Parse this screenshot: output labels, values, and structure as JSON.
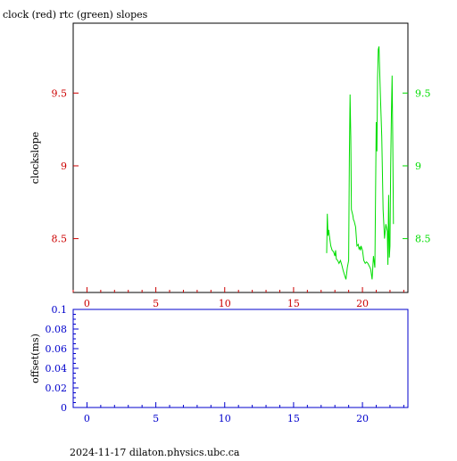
{
  "header": {
    "title": "clock (red) rtc (green) slopes"
  },
  "footer": {
    "text": "2024-11-17  dilaton.physics.ubc.ca"
  },
  "colors": {
    "red": "#cc0000",
    "green": "#00dd00",
    "blue": "#0000cc",
    "frame": "#000000"
  },
  "chart_data": [
    {
      "type": "line",
      "title": "clock (red) rtc (green) slopes",
      "xlabel": "",
      "ylabel": "clockslope",
      "xlim": [
        -1,
        23.3
      ],
      "ylim": [
        8.13,
        9.98
      ],
      "x_ticks": [
        0,
        5,
        10,
        15,
        20
      ],
      "y_ticks_left": [
        8.5,
        9,
        9.5
      ],
      "y_ticks_right": [
        8.5,
        9,
        9.5
      ],
      "y_tick_labels_left": [
        "8.5",
        "9",
        "9.5"
      ],
      "y_tick_labels_right": [
        "8.5",
        "9",
        "9.5"
      ],
      "grid": false,
      "legend": "none",
      "series": [
        {
          "color": "green",
          "x": [
            17.4,
            17.45,
            17.5,
            17.55,
            17.6,
            17.7,
            17.8,
            17.9,
            18.0,
            18.05,
            18.1,
            18.2,
            18.3,
            18.4,
            18.5,
            18.6,
            18.7,
            18.8,
            18.9,
            19.0,
            19.05,
            19.1,
            19.15,
            19.2,
            19.25,
            19.3,
            19.35,
            19.4,
            19.5,
            19.6,
            19.7,
            19.75,
            19.8,
            19.85,
            19.9,
            20.0,
            20.1,
            20.2,
            20.3,
            20.4,
            20.5,
            20.6,
            20.7,
            20.8,
            20.9,
            21.0,
            21.05,
            21.1,
            21.15,
            21.2,
            21.3,
            21.4,
            21.5,
            21.6,
            21.7,
            21.8,
            21.85,
            21.9,
            21.95,
            22.0,
            22.05,
            22.1,
            22.15,
            22.2,
            22.25
          ],
          "y": [
            8.4,
            8.67,
            8.52,
            8.56,
            8.52,
            8.45,
            8.42,
            8.41,
            8.38,
            8.42,
            8.36,
            8.35,
            8.33,
            8.35,
            8.32,
            8.28,
            8.25,
            8.22,
            8.3,
            8.35,
            9.05,
            9.49,
            9.2,
            8.7,
            8.68,
            8.66,
            8.63,
            8.62,
            8.58,
            8.45,
            8.46,
            8.43,
            8.44,
            8.42,
            8.45,
            8.42,
            8.35,
            8.33,
            8.34,
            8.33,
            8.31,
            8.29,
            8.22,
            8.38,
            8.3,
            9.3,
            9.1,
            9.6,
            9.8,
            9.82,
            9.5,
            9.2,
            8.7,
            8.5,
            8.6,
            8.55,
            8.32,
            8.8,
            8.37,
            8.45,
            9.0,
            9.35,
            9.62,
            9.2,
            8.6
          ]
        }
      ]
    },
    {
      "type": "line",
      "title": "",
      "xlabel": "",
      "ylabel": "offset(ms)",
      "xlim": [
        -1,
        23.3
      ],
      "ylim": [
        0,
        0.1
      ],
      "x_ticks": [
        0,
        5,
        10,
        15,
        20
      ],
      "y_ticks": [
        0,
        0.02,
        0.04,
        0.06,
        0.08,
        0.1
      ],
      "y_tick_labels": [
        "0",
        "0.02",
        "0.04",
        "0.06",
        "0.08",
        "0.1"
      ],
      "grid": false,
      "legend": "none",
      "series": []
    }
  ]
}
